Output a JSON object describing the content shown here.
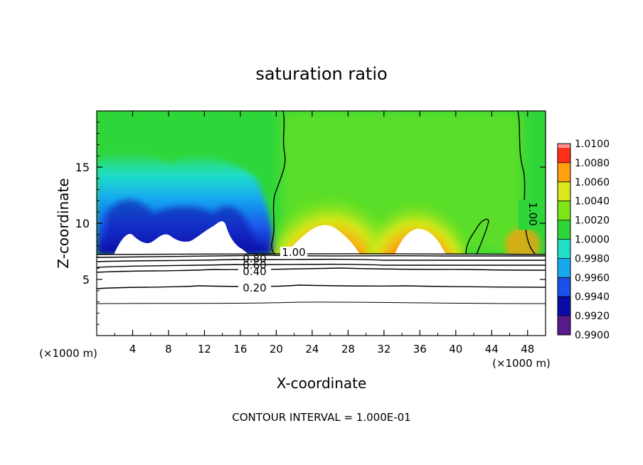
{
  "chart_data": {
    "type": "heatmap",
    "title": "saturation ratio",
    "xlabel": "X-coordinate",
    "ylabel": "Z-coordinate",
    "x_unit_left": "(×1000 m)",
    "x_unit_right": "(×1000 m)",
    "xlim": [
      0,
      50
    ],
    "ylim": [
      0,
      20
    ],
    "x_ticks": [
      4,
      8,
      12,
      16,
      20,
      24,
      28,
      32,
      36,
      40,
      44,
      48
    ],
    "y_ticks": [
      5,
      10,
      15
    ],
    "footer": "CONTOUR INTERVAL = 1.000E-01",
    "colorbar": {
      "levels": [
        0.99,
        0.992,
        0.994,
        0.996,
        0.998,
        1.0,
        1.002,
        1.004,
        1.006,
        1.008,
        1.01
      ],
      "labels": [
        "0.9900",
        "0.9920",
        "0.9940",
        "0.9960",
        "0.9980",
        "1.0000",
        "1.0020",
        "1.0040",
        "1.0060",
        "1.0080",
        "1.0100"
      ],
      "colors": [
        "#5a1a8c",
        "#0b0ba8",
        "#1a4fe8",
        "#18a8f0",
        "#20e0c8",
        "#2fd63a",
        "#7ee51a",
        "#d8e818",
        "#ffa010",
        "#ff3018",
        "#ff9090"
      ]
    },
    "contour_lines": [
      {
        "label": "0.20",
        "z": 4.5
      },
      {
        "label": "0.40",
        "z": 5.6
      },
      {
        "label": "0.60",
        "z": 6.2
      },
      {
        "label": "0.80",
        "z": 6.8
      },
      {
        "label": "1.00",
        "z": 7.3
      }
    ],
    "cloud_free_line": {
      "label": "1.00"
    },
    "features": [
      {
        "name": "dry region",
        "x_range": [
          0,
          19
        ],
        "z_range": [
          7.3,
          17
        ],
        "value_min": 0.99
      },
      {
        "name": "moist plume 1",
        "center_x": 25,
        "center_z": 8.5,
        "value_max": 1.008
      },
      {
        "name": "moist plume 2",
        "center_x": 35,
        "center_z": 8.5,
        "value_max": 1.008
      }
    ]
  }
}
